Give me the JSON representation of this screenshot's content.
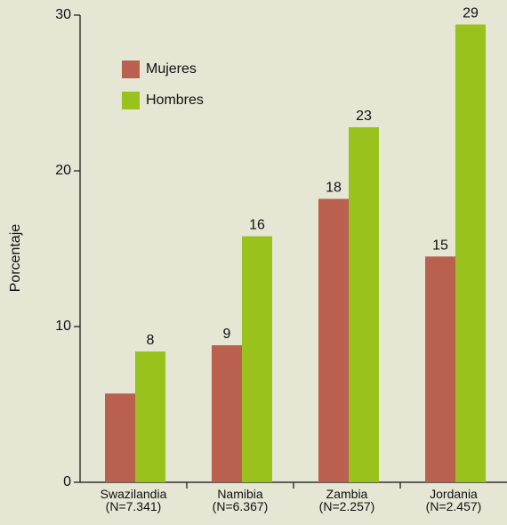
{
  "chart_data": {
    "type": "bar",
    "y_label": "Porcentaje",
    "categories": [
      "Swazilandia\n(N=7.341)",
      "Namibia\n(N=6.367)",
      "Zambia\n(N=2.257)",
      "Jordania\n(N=2.457)"
    ],
    "series": [
      {
        "name": "Mujeres",
        "color": "#b9604f",
        "values": [
          5.7,
          8.8,
          18.2,
          14.5
        ],
        "value_labels": [
          null,
          "9",
          "18",
          "15"
        ]
      },
      {
        "name": "Hombres",
        "color": "#99c21c",
        "values": [
          8.4,
          15.8,
          22.8,
          29.4
        ],
        "value_labels": [
          "8",
          "16",
          "23",
          "29"
        ]
      }
    ],
    "ylim": [
      0,
      30
    ],
    "yticks": [
      0,
      10,
      20,
      30
    ],
    "grid": false,
    "legend": "upper left"
  }
}
